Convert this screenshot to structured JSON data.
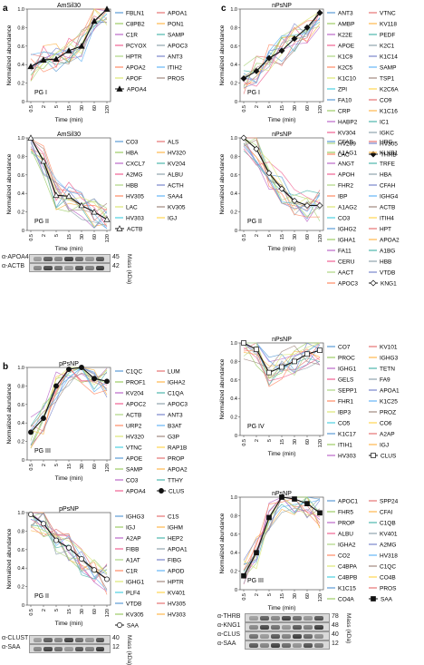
{
  "panels": [
    {
      "letter": "a",
      "title": "AmSil30",
      "group": "PG I",
      "ylabel": "Normalized abundance",
      "xlabel": "Time (min)",
      "legend": [
        [
          "FBLN1",
          "APOA1"
        ],
        [
          "C8PB2",
          "PON1"
        ],
        [
          "C1R",
          "SAMP"
        ],
        [
          "PCYOX",
          "APOC3"
        ],
        [
          "HPTR",
          "ANT3"
        ],
        [
          "APOA2",
          "ITIH2"
        ],
        [
          "APOF",
          "PROS"
        ]
      ],
      "highlight": "APOA4",
      "highlight_values": [
        0.38,
        0.45,
        0.46,
        0.55,
        0.6,
        0.87,
        1.0
      ]
    },
    {
      "letter": "",
      "title": "AmSil30",
      "group": "PG II",
      "ylabel": "Normalized abundance",
      "xlabel": "Time (min)",
      "legend": [
        [
          "CO3",
          "ALS"
        ],
        [
          "HBA",
          "HV320"
        ],
        [
          "CXCL7",
          "KV204"
        ],
        [
          "A2MG",
          "ALBU"
        ],
        [
          "HBB",
          "ACTH"
        ],
        [
          "HV305",
          "SAA4"
        ],
        [
          "LAC",
          "KV305"
        ],
        [
          "HV303",
          "IGJ"
        ]
      ],
      "highlight": "ACTB",
      "highlight_values": [
        1.0,
        0.75,
        0.38,
        0.37,
        0.27,
        0.2,
        0.12
      ]
    },
    {
      "letter": "c",
      "title": "nPsNP",
      "group": "PG I",
      "ylabel": "Normalized abundance",
      "xlabel": "Time (min)",
      "legend": [
        [
          "ANT3",
          "VTNC"
        ],
        [
          "AMBP",
          "KV118"
        ],
        [
          "K22E",
          "PEDF"
        ],
        [
          "APOE",
          "K2C1"
        ],
        [
          "K1C9",
          "K1C14"
        ],
        [
          "K2C5",
          "SAMP"
        ],
        [
          "K1C10",
          "TSP1"
        ],
        [
          "ZPI",
          "K2C6A"
        ],
        [
          "FA10",
          "CO9"
        ],
        [
          "CRP",
          "K1C16"
        ],
        [
          "HABP2",
          "IC1"
        ],
        [
          "KV304",
          "IGKC"
        ],
        [
          "HV209",
          "HV305"
        ],
        [
          "LAC",
          ""
        ]
      ],
      "highlight": "THRB",
      "highlight_values": [
        0.25,
        0.33,
        0.47,
        0.55,
        0.68,
        0.8,
        0.96
      ]
    },
    {
      "letter": "",
      "title": "nPsNP",
      "group": "PG II",
      "ylabel": "Normalized abundance",
      "xlabel": "Time (min)",
      "legend": [
        [
          "CFAB",
          "HRG"
        ],
        [
          "A1AG1",
          "KLKB1"
        ],
        [
          "ANGT",
          "TRFE"
        ],
        [
          "APOH",
          "HBA"
        ],
        [
          "FHR2",
          "CFAH"
        ],
        [
          "IBP",
          "IGHG4"
        ],
        [
          "A1AG2",
          "ACTB"
        ],
        [
          "CO3",
          "ITIH4"
        ],
        [
          "IGHG2",
          "HPT"
        ],
        [
          "IGHA1",
          "APOA2"
        ],
        [
          "FA11",
          "A1BG"
        ],
        [
          "CERU",
          "HBB"
        ],
        [
          "AACT",
          "VTDB"
        ],
        [
          "APOC3",
          ""
        ]
      ],
      "highlight": "KNG1",
      "highlight_values": [
        1.0,
        0.88,
        0.62,
        0.45,
        0.32,
        0.27,
        0.27
      ]
    },
    {
      "letter": "b",
      "title": "pPsNP",
      "group": "PG III",
      "ylabel": "Normalized abundance",
      "xlabel": "Time (min)",
      "legend": [
        [
          "C1QC",
          "LUM"
        ],
        [
          "PROF1",
          "IGHA2"
        ],
        [
          "KV204",
          "C1QA"
        ],
        [
          "APOC2",
          "APOC3"
        ],
        [
          "ACTB",
          "ANT3"
        ],
        [
          "URP2",
          "B3AT"
        ],
        [
          "HV320",
          "G3P"
        ],
        [
          "VTNC",
          "RAP1B"
        ],
        [
          "APOE",
          "PROP"
        ],
        [
          "SAMP",
          "APOA2"
        ],
        [
          "CO3",
          "TTHY"
        ],
        [
          "APOA4",
          ""
        ]
      ],
      "highlight": "CLUS",
      "highlight_values": [
        0.3,
        0.45,
        0.8,
        0.98,
        1.0,
        0.88,
        0.85
      ]
    },
    {
      "letter": "",
      "title": "nPsNP",
      "group": "PG IV",
      "ylabel": "Normalized abundance",
      "xlabel": "Time (min)",
      "legend": [
        [
          "CO7",
          "KV101"
        ],
        [
          "PROC",
          "IGHG3"
        ],
        [
          "IGHG1",
          "TETN"
        ],
        [
          "GELS",
          "FA9"
        ],
        [
          "SEPP1",
          "APOA1"
        ],
        [
          "FHR1",
          "K1C25"
        ],
        [
          "IBP3",
          "PROZ"
        ],
        [
          "CO5",
          "CO6"
        ],
        [
          "K1C17",
          "A2AP"
        ],
        [
          "ITIH1",
          "IGJ"
        ],
        [
          "HV303",
          ""
        ]
      ],
      "highlight": "CLUS",
      "highlight_values": [
        1.0,
        0.93,
        0.68,
        0.74,
        0.8,
        0.88,
        0.92
      ]
    },
    {
      "letter": "",
      "title": "pPsNP",
      "group": "PG II",
      "ylabel": "Normalized abundance",
      "xlabel": "Time (min)",
      "legend": [
        [
          "IGHG3",
          "C1S"
        ],
        [
          "IGJ",
          "IGHM"
        ],
        [
          "A2AP",
          "HEP2"
        ],
        [
          "FIBB",
          "APOA1"
        ],
        [
          "A1AT",
          "FIBG"
        ],
        [
          "C1R",
          "APOD"
        ],
        [
          "IGHG1",
          "HPTR"
        ],
        [
          "PLF4",
          "KV401"
        ],
        [
          "VTDB",
          "HV305"
        ],
        [
          "KV305",
          "HV303"
        ]
      ],
      "highlight": "SAA",
      "highlight_values": [
        0.98,
        0.88,
        0.7,
        0.62,
        0.5,
        0.38,
        0.28
      ]
    },
    {
      "letter": "",
      "title": "nPsNP",
      "group": "PG III",
      "ylabel": "Normalized abundance",
      "xlabel": "Time (min)",
      "legend": [
        [
          "APOC1",
          "SPP24"
        ],
        [
          "FHR5",
          "CFAI"
        ],
        [
          "PROP",
          "C1QB"
        ],
        [
          "ALBU",
          "KV401"
        ],
        [
          "IGHA2",
          "A2MG"
        ],
        [
          "CO2",
          "HV318"
        ],
        [
          "C4BPA",
          "C1QC"
        ],
        [
          "C4BPB",
          "CO4B"
        ],
        [
          "K1C15",
          "PROS"
        ],
        [
          "CO4A",
          ""
        ]
      ],
      "highlight": "SAA",
      "highlight_values": [
        0.15,
        0.4,
        0.78,
        1.0,
        0.98,
        0.93,
        0.83
      ]
    }
  ],
  "xticks": [
    "0.5",
    "2",
    "5",
    "15",
    "30",
    "60",
    "120"
  ],
  "yticks": [
    "0",
    "0.2",
    "0.4",
    "0.6",
    "0.8",
    "1.0"
  ],
  "colors": [
    "#5b9bd5",
    "#e57373",
    "#9ccc65",
    "#ffb74d",
    "#ba68c8",
    "#4db6ac",
    "#f06292",
    "#90a4ae",
    "#aed581",
    "#7986cb",
    "#ff8a65",
    "#64b5f6",
    "#dce775",
    "#a1887f",
    "#4dd0e1",
    "#ffd54f"
  ],
  "blots": [
    {
      "rows": [
        {
          "label": "α-APOA4",
          "mass": "45"
        },
        {
          "label": "α-ACTB",
          "mass": "42"
        }
      ],
      "mass_title": "Mass (kDa)"
    },
    {
      "rows": [
        {
          "label": "α-THRB",
          "mass": "78"
        },
        {
          "label": "α-KNG1",
          "mass": "48"
        },
        {
          "label": "α-CLUS",
          "mass": "40"
        },
        {
          "label": "α-SAA",
          "mass": "12"
        }
      ],
      "mass_title": "Mass (kDa)"
    },
    {
      "rows": [
        {
          "label": "α-CLUST",
          "mass": "40"
        },
        {
          "label": "α-SAA",
          "mass": "12"
        }
      ],
      "mass_title": "Mass (kDa)"
    }
  ]
}
